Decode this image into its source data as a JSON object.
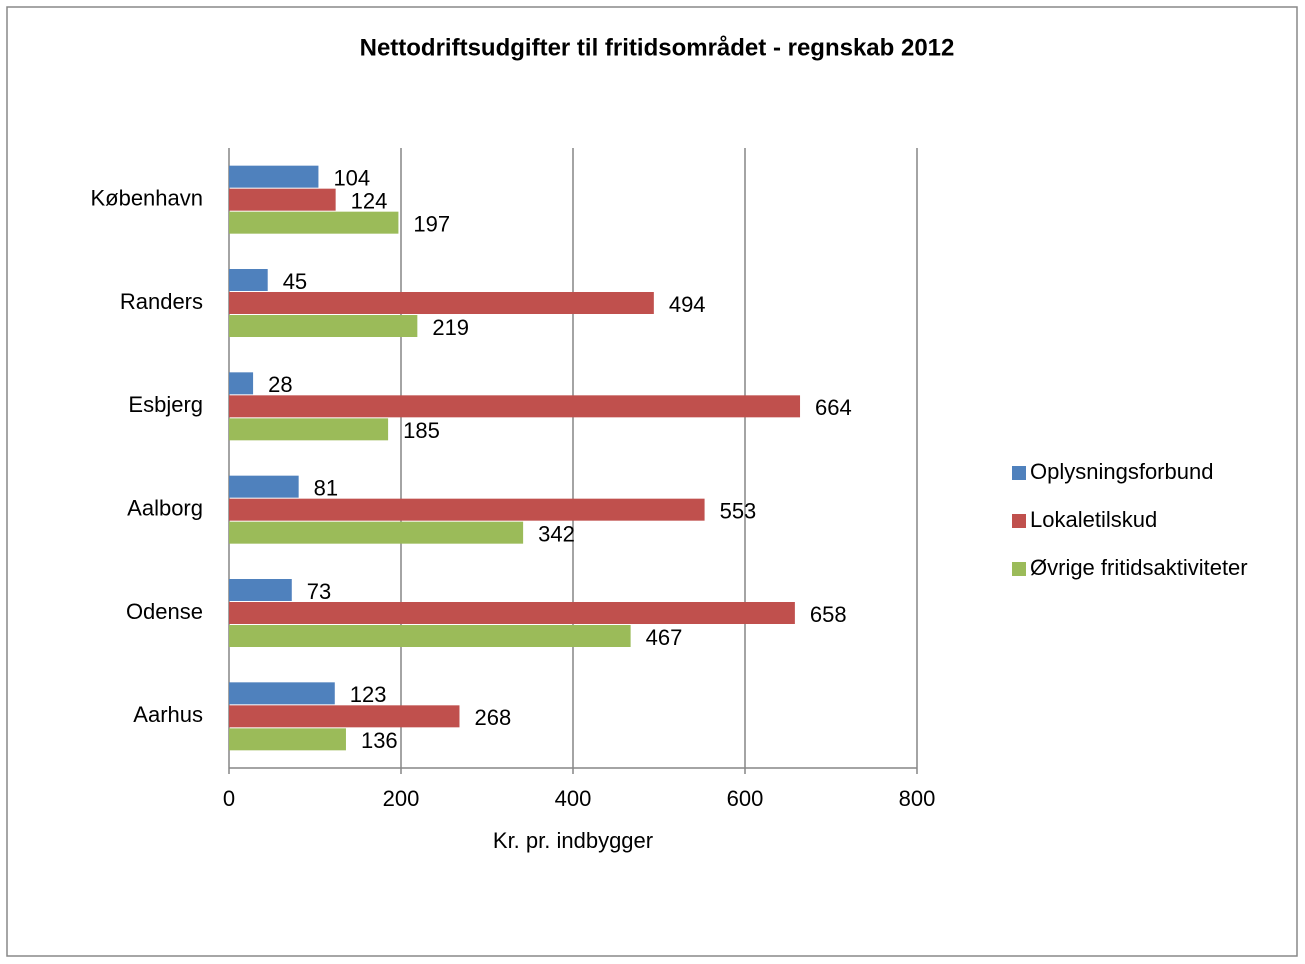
{
  "chart_data": {
    "type": "bar",
    "orientation": "horizontal",
    "title": "Nettodriftsudgifter til fritidsområdet - regnskab 2012",
    "xlabel": "Kr. pr. indbygger",
    "categories": [
      "København",
      "Randers",
      "Esbjerg",
      "Aalborg",
      "Odense",
      "Aarhus"
    ],
    "series": [
      {
        "name": "Oplysningsforbund",
        "color": "#4f81bd",
        "values": [
          104,
          45,
          28,
          81,
          73,
          123
        ]
      },
      {
        "name": "Lokaletilskud",
        "color": "#c0504d",
        "values": [
          124,
          494,
          664,
          553,
          658,
          268
        ]
      },
      {
        "name": "Øvrige fritidsaktiviteter",
        "color": "#9bbb59",
        "values": [
          197,
          219,
          185,
          342,
          467,
          136
        ]
      }
    ],
    "xlim": [
      0,
      800
    ],
    "xticks": [
      0,
      200,
      400,
      600,
      800
    ],
    "grid": true,
    "legend": "right"
  }
}
